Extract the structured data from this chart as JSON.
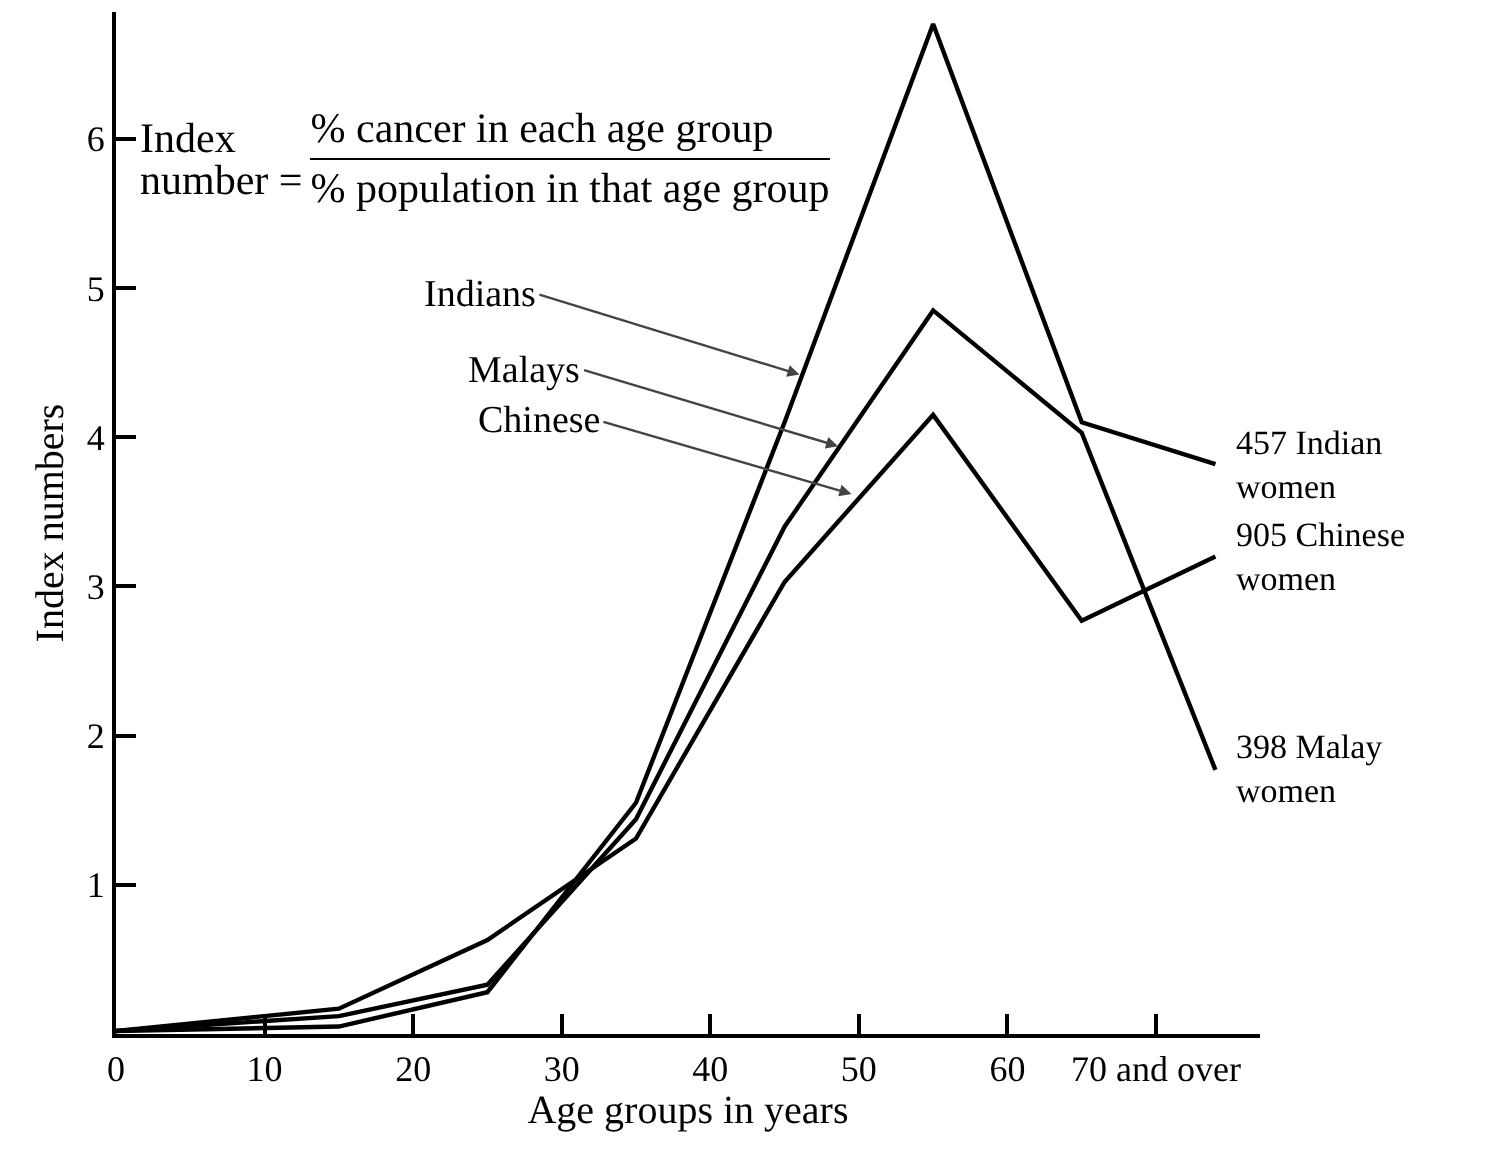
{
  "chart_data": {
    "type": "line",
    "xlabel": "Age groups in years",
    "ylabel": "Index numbers",
    "x": [
      0,
      15,
      25,
      35,
      45,
      55,
      65,
      74
    ],
    "series": [
      {
        "color": "#000000",
        "values": [
          0.02,
          0.05,
          0.28,
          1.55,
          4.1,
          6.77,
          4.1,
          3.82
        ]
      },
      {
        "color": "#000000",
        "values": [
          0.02,
          0.12,
          0.33,
          1.44,
          3.4,
          4.85,
          4.03,
          1.77
        ]
      },
      {
        "color": "#000000",
        "values": [
          0.02,
          0.17,
          0.63,
          1.31,
          3.03,
          4.15,
          2.77,
          3.2
        ]
      }
    ],
    "xlim": [
      0,
      77
    ],
    "ylim": [
      0,
      6.85
    ],
    "xticks": [
      0,
      10,
      20,
      30,
      40,
      50,
      60,
      {
        "value": 70,
        "label": "70 and over"
      }
    ],
    "yticks": [
      1,
      2,
      3,
      4,
      5,
      6
    ],
    "grid": false,
    "marker": "none",
    "line_style": "solid",
    "annotations": [
      "Index\nnumber =",
      "% cancer in each age group",
      "% population in that age group",
      {
        "text": "Indians",
        "x": 46,
        "y": 4.42
      },
      {
        "text": "Malays",
        "x": 48.6,
        "y": 3.94
      },
      {
        "text": "Chinese",
        "x": 49.5,
        "y": 3.62
      },
      {
        "text": "457 Indian\nwomen",
        "x": 74,
        "y": 3.82
      },
      {
        "text": "905 Chinese\nwomen",
        "x": 74,
        "y": 3.2
      },
      {
        "text": "398 Malay\nwomen",
        "x": 74,
        "y": 1.77
      }
    ]
  }
}
